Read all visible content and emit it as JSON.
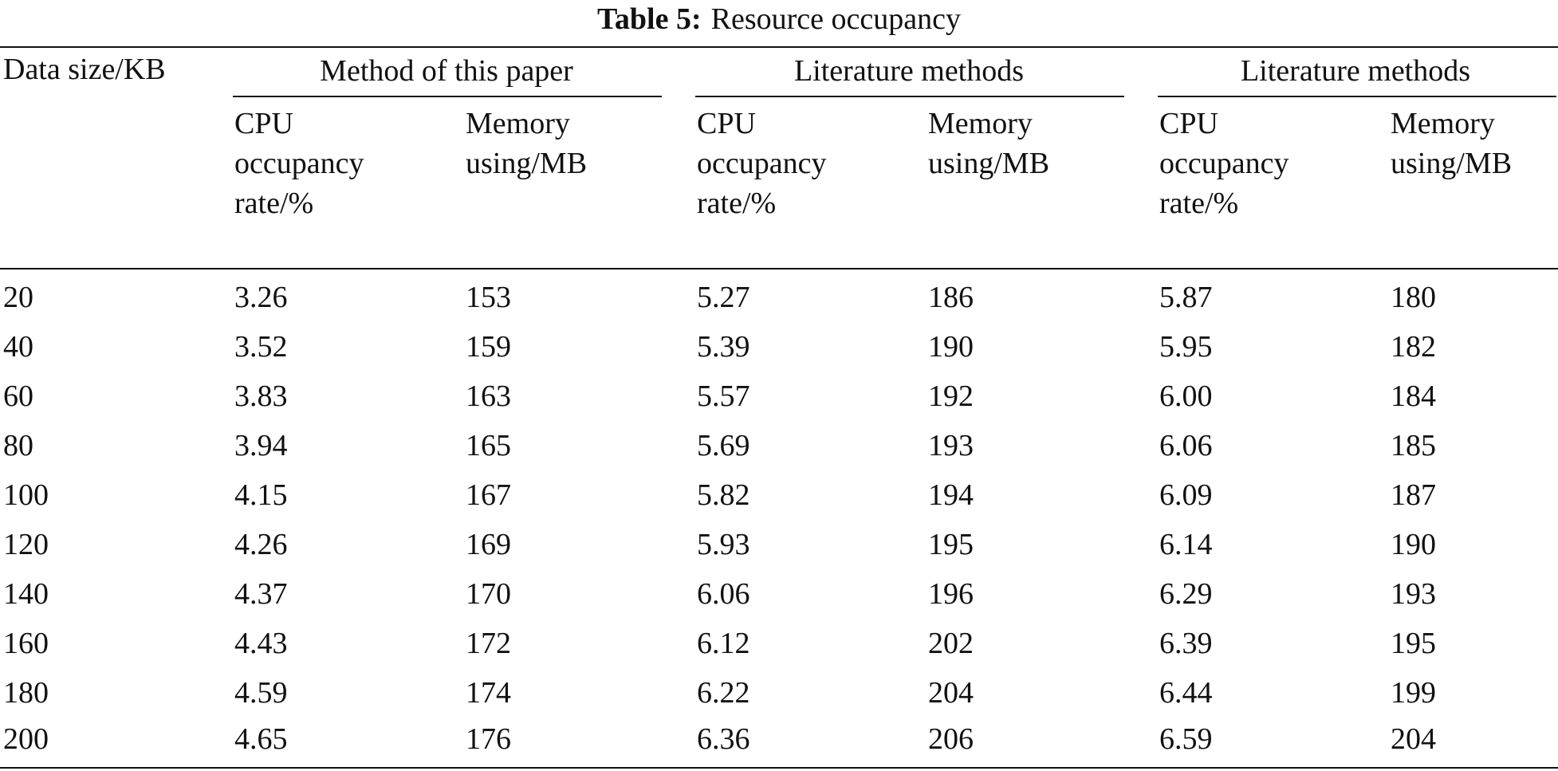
{
  "table": {
    "caption_label": "Table 5:",
    "caption_text": "Resource occupancy",
    "stub_header": "Data size/KB",
    "groups": [
      {
        "label": "Method of this paper",
        "cpu_header": [
          "CPU",
          "occupancy",
          "rate/%"
        ],
        "memory_header": [
          "Memory",
          "using/MB"
        ]
      },
      {
        "label": "Literature methods",
        "cpu_header": [
          "CPU",
          "occupancy",
          "rate/%"
        ],
        "memory_header": [
          "Memory",
          "using/MB"
        ]
      },
      {
        "label": "Literature methods",
        "cpu_header": [
          "CPU",
          "occupancy",
          "rate/%"
        ],
        "memory_header": [
          "Memory",
          "using/MB"
        ]
      }
    ],
    "rows": [
      [
        "20",
        "3.26",
        "153",
        "5.27",
        "186",
        "5.87",
        "180"
      ],
      [
        "40",
        "3.52",
        "159",
        "5.39",
        "190",
        "5.95",
        "182"
      ],
      [
        "60",
        "3.83",
        "163",
        "5.57",
        "192",
        "6.00",
        "184"
      ],
      [
        "80",
        "3.94",
        "165",
        "5.69",
        "193",
        "6.06",
        "185"
      ],
      [
        "100",
        "4.15",
        "167",
        "5.82",
        "194",
        "6.09",
        "187"
      ],
      [
        "120",
        "4.26",
        "169",
        "5.93",
        "195",
        "6.14",
        "190"
      ],
      [
        "140",
        "4.37",
        "170",
        "6.06",
        "196",
        "6.29",
        "193"
      ],
      [
        "160",
        "4.43",
        "172",
        "6.12",
        "202",
        "6.39",
        "195"
      ],
      [
        "180",
        "4.59",
        "174",
        "6.22",
        "204",
        "6.44",
        "199"
      ],
      [
        "200",
        "4.65",
        "176",
        "6.36",
        "206",
        "6.59",
        "204"
      ]
    ]
  }
}
